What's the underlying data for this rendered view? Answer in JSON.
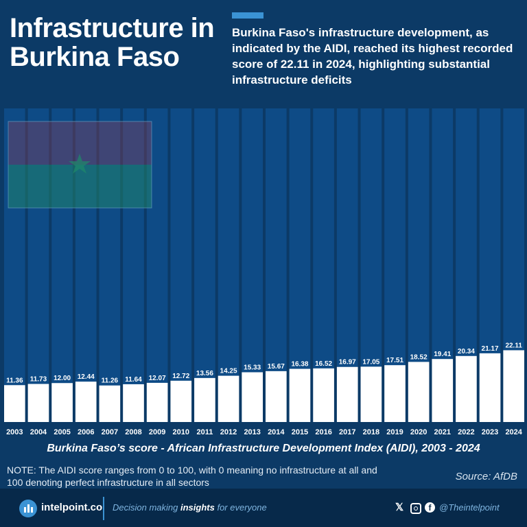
{
  "header": {
    "title": "Infrastructure in Burkina Faso",
    "subtitle": "Burkina Faso's infrastructure development, as indicated by the AIDI, reached its highest recorded score of 22.11 in 2024, highlighting substantial infrastructure deficits"
  },
  "chart_data": {
    "type": "bar",
    "title": "Burkina Faso’s score - African Infrastructure Development Index (AIDI), 2003 - 2024",
    "categories": [
      "2003",
      "2004",
      "2005",
      "2006",
      "2007",
      "2008",
      "2009",
      "2010",
      "2011",
      "2012",
      "2013",
      "2014",
      "2015",
      "2016",
      "2017",
      "2018",
      "2019",
      "2020",
      "2021",
      "2022",
      "2023",
      "2024"
    ],
    "values": [
      11.36,
      11.73,
      12.0,
      12.44,
      11.26,
      11.64,
      12.07,
      12.72,
      13.56,
      14.25,
      15.33,
      15.67,
      16.38,
      16.52,
      16.97,
      17.05,
      17.51,
      18.52,
      19.41,
      20.34,
      21.17,
      22.11
    ],
    "value_labels": [
      "11.36",
      "11.73",
      "12.00",
      "12.44",
      "11.26",
      "11.64",
      "12.07",
      "12.72",
      "13.56",
      "14.25",
      "15.33",
      "15.67",
      "16.38",
      "16.52",
      "16.97",
      "17.05",
      "17.51",
      "18.52",
      "19.41",
      "20.34",
      "21.17",
      "22.11"
    ],
    "ylim": [
      0,
      100
    ],
    "xlabel": "",
    "ylabel": "",
    "grid": false,
    "colors": {
      "bar": "#ffffff",
      "background_column": "#0e4b86",
      "value_label": "#ffffff"
    }
  },
  "note": "NOTE: The AIDI score ranges from 0 to 100, with 0 meaning no infrastructure at all and 100 denoting perfect infrastructure in all sectors",
  "source": "Source: AfDB",
  "footer": {
    "brand": "intelpoint.co",
    "tagline_pre": "Decision making ",
    "tagline_bold": "insights",
    "tagline_post": " for everyone",
    "handle": "@Theintelpoint",
    "icons": [
      "x-icon",
      "instagram-icon",
      "facebook-icon"
    ]
  },
  "colors": {
    "background": "#0c3a66",
    "accent": "#3b93d4",
    "footer": "#07294a"
  }
}
